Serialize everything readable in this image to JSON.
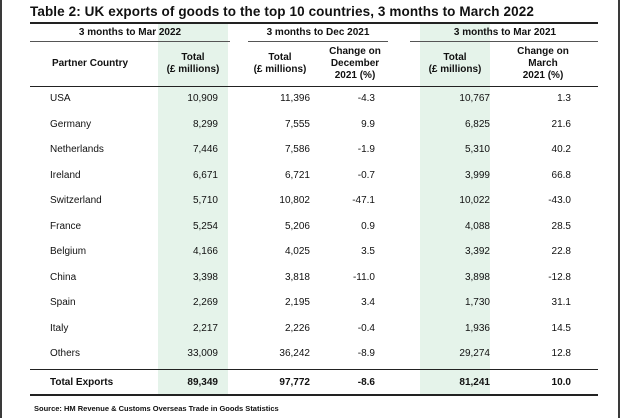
{
  "title": "Table 2: UK exports of goods to the top 10 countries, 3 months to March 2022",
  "periods": [
    "3 months to Mar 2022",
    "3 months to Dec 2021",
    "3 months to Mar 2021"
  ],
  "headers": {
    "partner": "Partner Country",
    "total_1": "Total",
    "total_1b": "(£ millions)",
    "total_2": "Total",
    "total_2b": "(£ millions)",
    "change_dec_1": "Change on",
    "change_dec_2": "December",
    "change_dec_3": "2021 (%)",
    "total_3": "Total",
    "total_3b": "(£ millions)",
    "change_mar_1": "Change on",
    "change_mar_2": "March",
    "change_mar_3": "2021 (%)"
  },
  "rows": [
    {
      "country": "USA",
      "mar22": "10,909",
      "dec21": "11,396",
      "chg_dec": "-4.3",
      "mar21": "10,767",
      "chg_mar": "1.3"
    },
    {
      "country": "Germany",
      "mar22": "8,299",
      "dec21": "7,555",
      "chg_dec": "9.9",
      "mar21": "6,825",
      "chg_mar": "21.6"
    },
    {
      "country": "Netherlands",
      "mar22": "7,446",
      "dec21": "7,586",
      "chg_dec": "-1.9",
      "mar21": "5,310",
      "chg_mar": "40.2"
    },
    {
      "country": "Ireland",
      "mar22": "6,671",
      "dec21": "6,721",
      "chg_dec": "-0.7",
      "mar21": "3,999",
      "chg_mar": "66.8"
    },
    {
      "country": "Switzerland",
      "mar22": "5,710",
      "dec21": "10,802",
      "chg_dec": "-47.1",
      "mar21": "10,022",
      "chg_mar": "-43.0"
    },
    {
      "country": "France",
      "mar22": "5,254",
      "dec21": "5,206",
      "chg_dec": "0.9",
      "mar21": "4,088",
      "chg_mar": "28.5"
    },
    {
      "country": "Belgium",
      "mar22": "4,166",
      "dec21": "4,025",
      "chg_dec": "3.5",
      "mar21": "3,392",
      "chg_mar": "22.8"
    },
    {
      "country": "China",
      "mar22": "3,398",
      "dec21": "3,818",
      "chg_dec": "-11.0",
      "mar21": "3,898",
      "chg_mar": "-12.8"
    },
    {
      "country": "Spain",
      "mar22": "2,269",
      "dec21": "2,195",
      "chg_dec": "3.4",
      "mar21": "1,730",
      "chg_mar": "31.1"
    },
    {
      "country": "Italy",
      "mar22": "2,217",
      "dec21": "2,226",
      "chg_dec": "-0.4",
      "mar21": "1,936",
      "chg_mar": "14.5"
    },
    {
      "country": "Others",
      "mar22": "33,009",
      "dec21": "36,242",
      "chg_dec": "-8.9",
      "mar21": "29,274",
      "chg_mar": "12.8"
    }
  ],
  "total": {
    "country": "Total Exports",
    "mar22": "89,349",
    "dec21": "97,772",
    "chg_dec": "-8.6",
    "mar21": "81,241",
    "chg_mar": "10.0"
  },
  "source": "Source: HM Revenue & Customs Overseas Trade in Goods Statistics",
  "colors": {
    "highlight": "#e5f3ea",
    "rule": "#222222"
  }
}
